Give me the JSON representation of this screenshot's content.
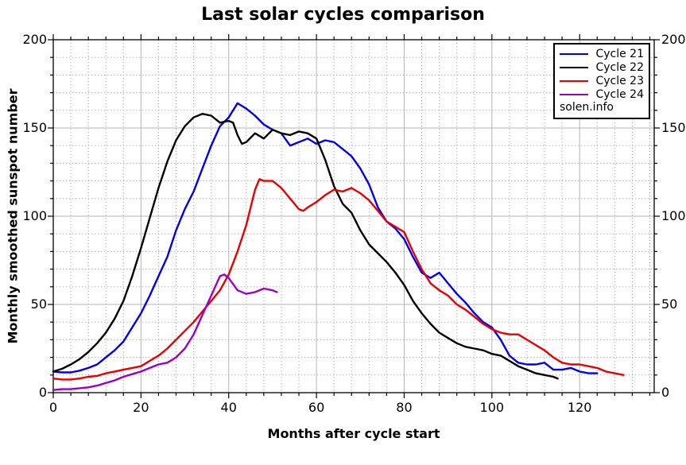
{
  "page": {
    "title": "Last solar cycles comparison"
  },
  "chart_data": {
    "type": "line",
    "title": "Last solar cycles comparison",
    "xlabel": "Months after cycle start",
    "ylabel": "Monthly smoothed sunspot number",
    "watermark": "solen.info",
    "xlim": [
      0,
      137
    ],
    "ylim": [
      0,
      200
    ],
    "x_major_ticks": [
      0,
      20,
      40,
      60,
      80,
      100,
      120
    ],
    "x_minor_step": 4,
    "y_major_ticks": [
      0,
      50,
      100,
      150,
      200
    ],
    "y_minor_step": 10,
    "grid": "major-solid-gray, minor-dotted-gray, framed-box-with-mirrored-ticks",
    "legend_position": "top-right",
    "colors": {
      "axis": "#000000",
      "grid_major": "#b4b4b4",
      "grid_minor": "#aaaaaa",
      "background": "#ffffff"
    },
    "series": [
      {
        "name": "Cycle 21",
        "color": "#0000ee",
        "points": [
          [
            0,
            12
          ],
          [
            2,
            11.5
          ],
          [
            4,
            11.5
          ],
          [
            6,
            12.5
          ],
          [
            8,
            14
          ],
          [
            10,
            16
          ],
          [
            12,
            20
          ],
          [
            14,
            24
          ],
          [
            16,
            29
          ],
          [
            18,
            37
          ],
          [
            20,
            45
          ],
          [
            22,
            55
          ],
          [
            24,
            66
          ],
          [
            26,
            77
          ],
          [
            28,
            92
          ],
          [
            30,
            104
          ],
          [
            32,
            114
          ],
          [
            34,
            127
          ],
          [
            36,
            140
          ],
          [
            38,
            151
          ],
          [
            40,
            156
          ],
          [
            42,
            164
          ],
          [
            44,
            161
          ],
          [
            46,
            157
          ],
          [
            48,
            152
          ],
          [
            50,
            149
          ],
          [
            52,
            147
          ],
          [
            54,
            140
          ],
          [
            56,
            142
          ],
          [
            58,
            144
          ],
          [
            60,
            141
          ],
          [
            62,
            143
          ],
          [
            64,
            142
          ],
          [
            66,
            138
          ],
          [
            68,
            134
          ],
          [
            70,
            127
          ],
          [
            72,
            118
          ],
          [
            74,
            105
          ],
          [
            76,
            97
          ],
          [
            78,
            93
          ],
          [
            80,
            87
          ],
          [
            82,
            77
          ],
          [
            84,
            68
          ],
          [
            86,
            65
          ],
          [
            88,
            68
          ],
          [
            90,
            62
          ],
          [
            92,
            56
          ],
          [
            94,
            51
          ],
          [
            96,
            45
          ],
          [
            98,
            40
          ],
          [
            100,
            37
          ],
          [
            102,
            30
          ],
          [
            104,
            21
          ],
          [
            106,
            17
          ],
          [
            108,
            16
          ],
          [
            110,
            16
          ],
          [
            112,
            17
          ],
          [
            114,
            13
          ],
          [
            116,
            13
          ],
          [
            118,
            14
          ],
          [
            120,
            12
          ],
          [
            122,
            11
          ],
          [
            124,
            11
          ]
        ]
      },
      {
        "name": "Cycle 22",
        "color": "#000000",
        "points": [
          [
            0,
            12
          ],
          [
            2,
            13.5
          ],
          [
            4,
            16
          ],
          [
            6,
            19
          ],
          [
            8,
            23
          ],
          [
            10,
            28
          ],
          [
            12,
            34
          ],
          [
            14,
            42
          ],
          [
            16,
            52
          ],
          [
            18,
            66
          ],
          [
            20,
            82
          ],
          [
            22,
            99
          ],
          [
            24,
            116
          ],
          [
            26,
            131
          ],
          [
            28,
            143
          ],
          [
            30,
            151
          ],
          [
            32,
            156
          ],
          [
            34,
            158
          ],
          [
            36,
            157
          ],
          [
            38,
            153
          ],
          [
            40,
            154
          ],
          [
            41,
            153
          ],
          [
            42,
            146
          ],
          [
            43,
            141
          ],
          [
            44,
            142
          ],
          [
            46,
            147
          ],
          [
            48,
            144
          ],
          [
            50,
            149
          ],
          [
            52,
            147
          ],
          [
            54,
            146
          ],
          [
            56,
            148
          ],
          [
            58,
            147
          ],
          [
            60,
            144
          ],
          [
            62,
            132
          ],
          [
            64,
            117
          ],
          [
            66,
            107
          ],
          [
            68,
            102
          ],
          [
            70,
            92
          ],
          [
            72,
            84
          ],
          [
            74,
            79
          ],
          [
            76,
            74
          ],
          [
            78,
            68
          ],
          [
            80,
            61
          ],
          [
            82,
            52
          ],
          [
            84,
            45
          ],
          [
            86,
            39
          ],
          [
            88,
            34
          ],
          [
            90,
            31
          ],
          [
            92,
            28
          ],
          [
            94,
            26
          ],
          [
            96,
            25
          ],
          [
            98,
            24
          ],
          [
            100,
            22
          ],
          [
            102,
            21
          ],
          [
            104,
            18
          ],
          [
            106,
            15
          ],
          [
            108,
            13
          ],
          [
            110,
            11
          ],
          [
            112,
            10
          ],
          [
            114,
            9
          ],
          [
            115,
            8
          ]
        ]
      },
      {
        "name": "Cycle 23",
        "color": "#e80000",
        "points": [
          [
            0,
            8
          ],
          [
            2,
            7.5
          ],
          [
            4,
            7.5
          ],
          [
            6,
            8
          ],
          [
            8,
            9
          ],
          [
            10,
            9.5
          ],
          [
            12,
            11
          ],
          [
            14,
            12
          ],
          [
            16,
            13
          ],
          [
            18,
            14
          ],
          [
            20,
            15
          ],
          [
            22,
            18
          ],
          [
            24,
            21
          ],
          [
            26,
            25
          ],
          [
            28,
            30
          ],
          [
            30,
            35
          ],
          [
            32,
            40
          ],
          [
            34,
            46
          ],
          [
            36,
            52
          ],
          [
            38,
            58
          ],
          [
            40,
            67
          ],
          [
            42,
            80
          ],
          [
            44,
            95
          ],
          [
            46,
            115
          ],
          [
            47,
            121
          ],
          [
            48,
            120
          ],
          [
            50,
            120
          ],
          [
            52,
            116
          ],
          [
            54,
            110
          ],
          [
            56,
            104
          ],
          [
            57,
            103
          ],
          [
            58,
            105
          ],
          [
            60,
            108
          ],
          [
            62,
            112
          ],
          [
            64,
            115
          ],
          [
            66,
            114
          ],
          [
            68,
            116
          ],
          [
            70,
            113
          ],
          [
            72,
            109
          ],
          [
            74,
            103
          ],
          [
            76,
            97
          ],
          [
            78,
            94
          ],
          [
            80,
            91
          ],
          [
            82,
            80
          ],
          [
            84,
            70
          ],
          [
            86,
            62
          ],
          [
            88,
            58
          ],
          [
            90,
            55
          ],
          [
            92,
            50
          ],
          [
            94,
            47
          ],
          [
            96,
            43
          ],
          [
            98,
            39
          ],
          [
            100,
            36
          ],
          [
            102,
            34
          ],
          [
            104,
            33
          ],
          [
            106,
            33
          ],
          [
            108,
            30
          ],
          [
            110,
            27
          ],
          [
            112,
            24
          ],
          [
            114,
            20
          ],
          [
            116,
            17
          ],
          [
            118,
            16
          ],
          [
            120,
            16
          ],
          [
            122,
            15
          ],
          [
            124,
            14
          ],
          [
            126,
            12
          ],
          [
            128,
            11
          ],
          [
            130,
            10
          ]
        ]
      },
      {
        "name": "Cycle 24",
        "color": "#9900cc",
        "points": [
          [
            0,
            1.5
          ],
          [
            2,
            2
          ],
          [
            4,
            2
          ],
          [
            6,
            2.5
          ],
          [
            8,
            3
          ],
          [
            10,
            4
          ],
          [
            12,
            5.5
          ],
          [
            14,
            7
          ],
          [
            16,
            9
          ],
          [
            18,
            10.5
          ],
          [
            20,
            12
          ],
          [
            22,
            14
          ],
          [
            24,
            16
          ],
          [
            26,
            17
          ],
          [
            28,
            20
          ],
          [
            30,
            25
          ],
          [
            32,
            33
          ],
          [
            34,
            44
          ],
          [
            36,
            55
          ],
          [
            38,
            66
          ],
          [
            39,
            67
          ],
          [
            40,
            65
          ],
          [
            42,
            58
          ],
          [
            44,
            56
          ],
          [
            46,
            57
          ],
          [
            48,
            59
          ],
          [
            50,
            58
          ],
          [
            51,
            57
          ]
        ]
      }
    ]
  }
}
